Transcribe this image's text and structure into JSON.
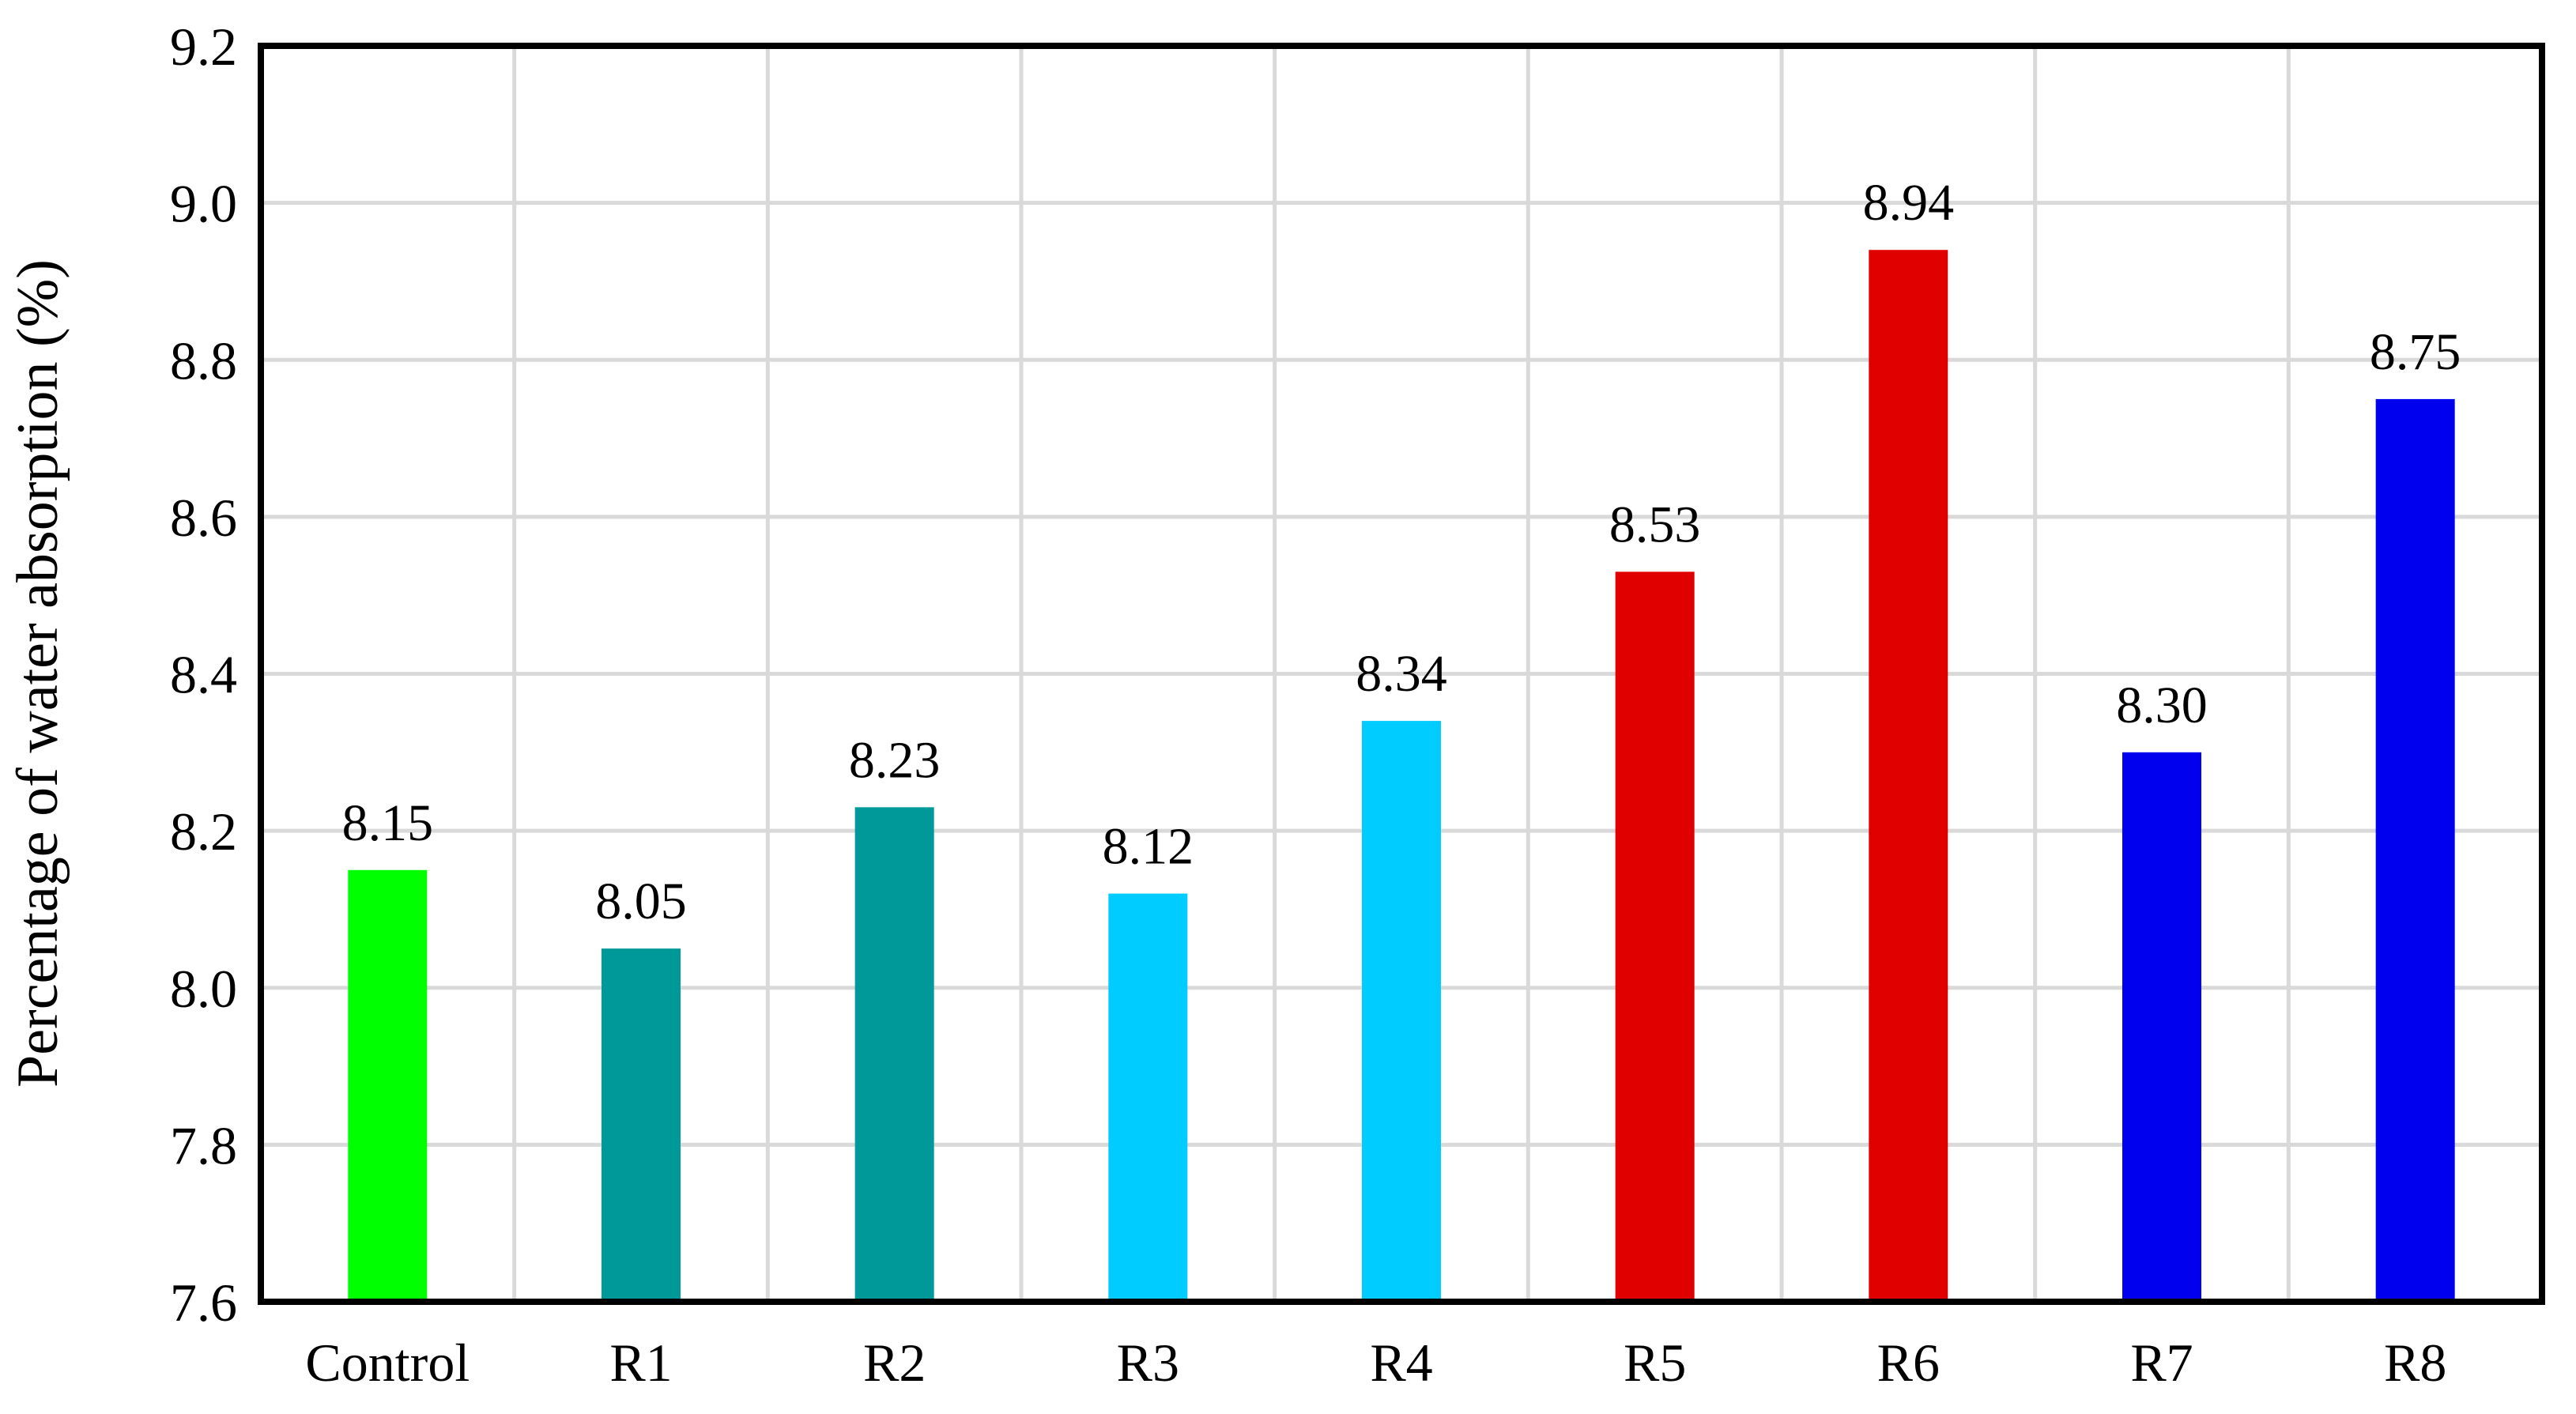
{
  "chart_data": {
    "type": "bar",
    "title": "",
    "xlabel": "",
    "ylabel": "Percentage of water absorption (%)",
    "categories": [
      "Control",
      "R1",
      "R2",
      "R3",
      "R4",
      "R5",
      "R6",
      "R7",
      "R8"
    ],
    "values": [
      8.15,
      8.05,
      8.23,
      8.12,
      8.34,
      8.53,
      8.94,
      8.3,
      8.75
    ],
    "data_labels": [
      "8.15",
      "8.05",
      "8.23",
      "8.12",
      "8.34",
      "8.53",
      "8.94",
      "8.30",
      "8.75"
    ],
    "bar_colors": [
      "#00ff00",
      "#009999",
      "#009999",
      "#00ccff",
      "#00ccff",
      "#e00000",
      "#e00000",
      "#0000ee",
      "#0000ee"
    ],
    "ylim": [
      7.6,
      9.2
    ],
    "yticks": [
      "7.6",
      "7.8",
      "8.0",
      "8.2",
      "8.4",
      "8.6",
      "8.8",
      "9.0",
      "9.2"
    ],
    "grid": true,
    "legend": "none"
  }
}
